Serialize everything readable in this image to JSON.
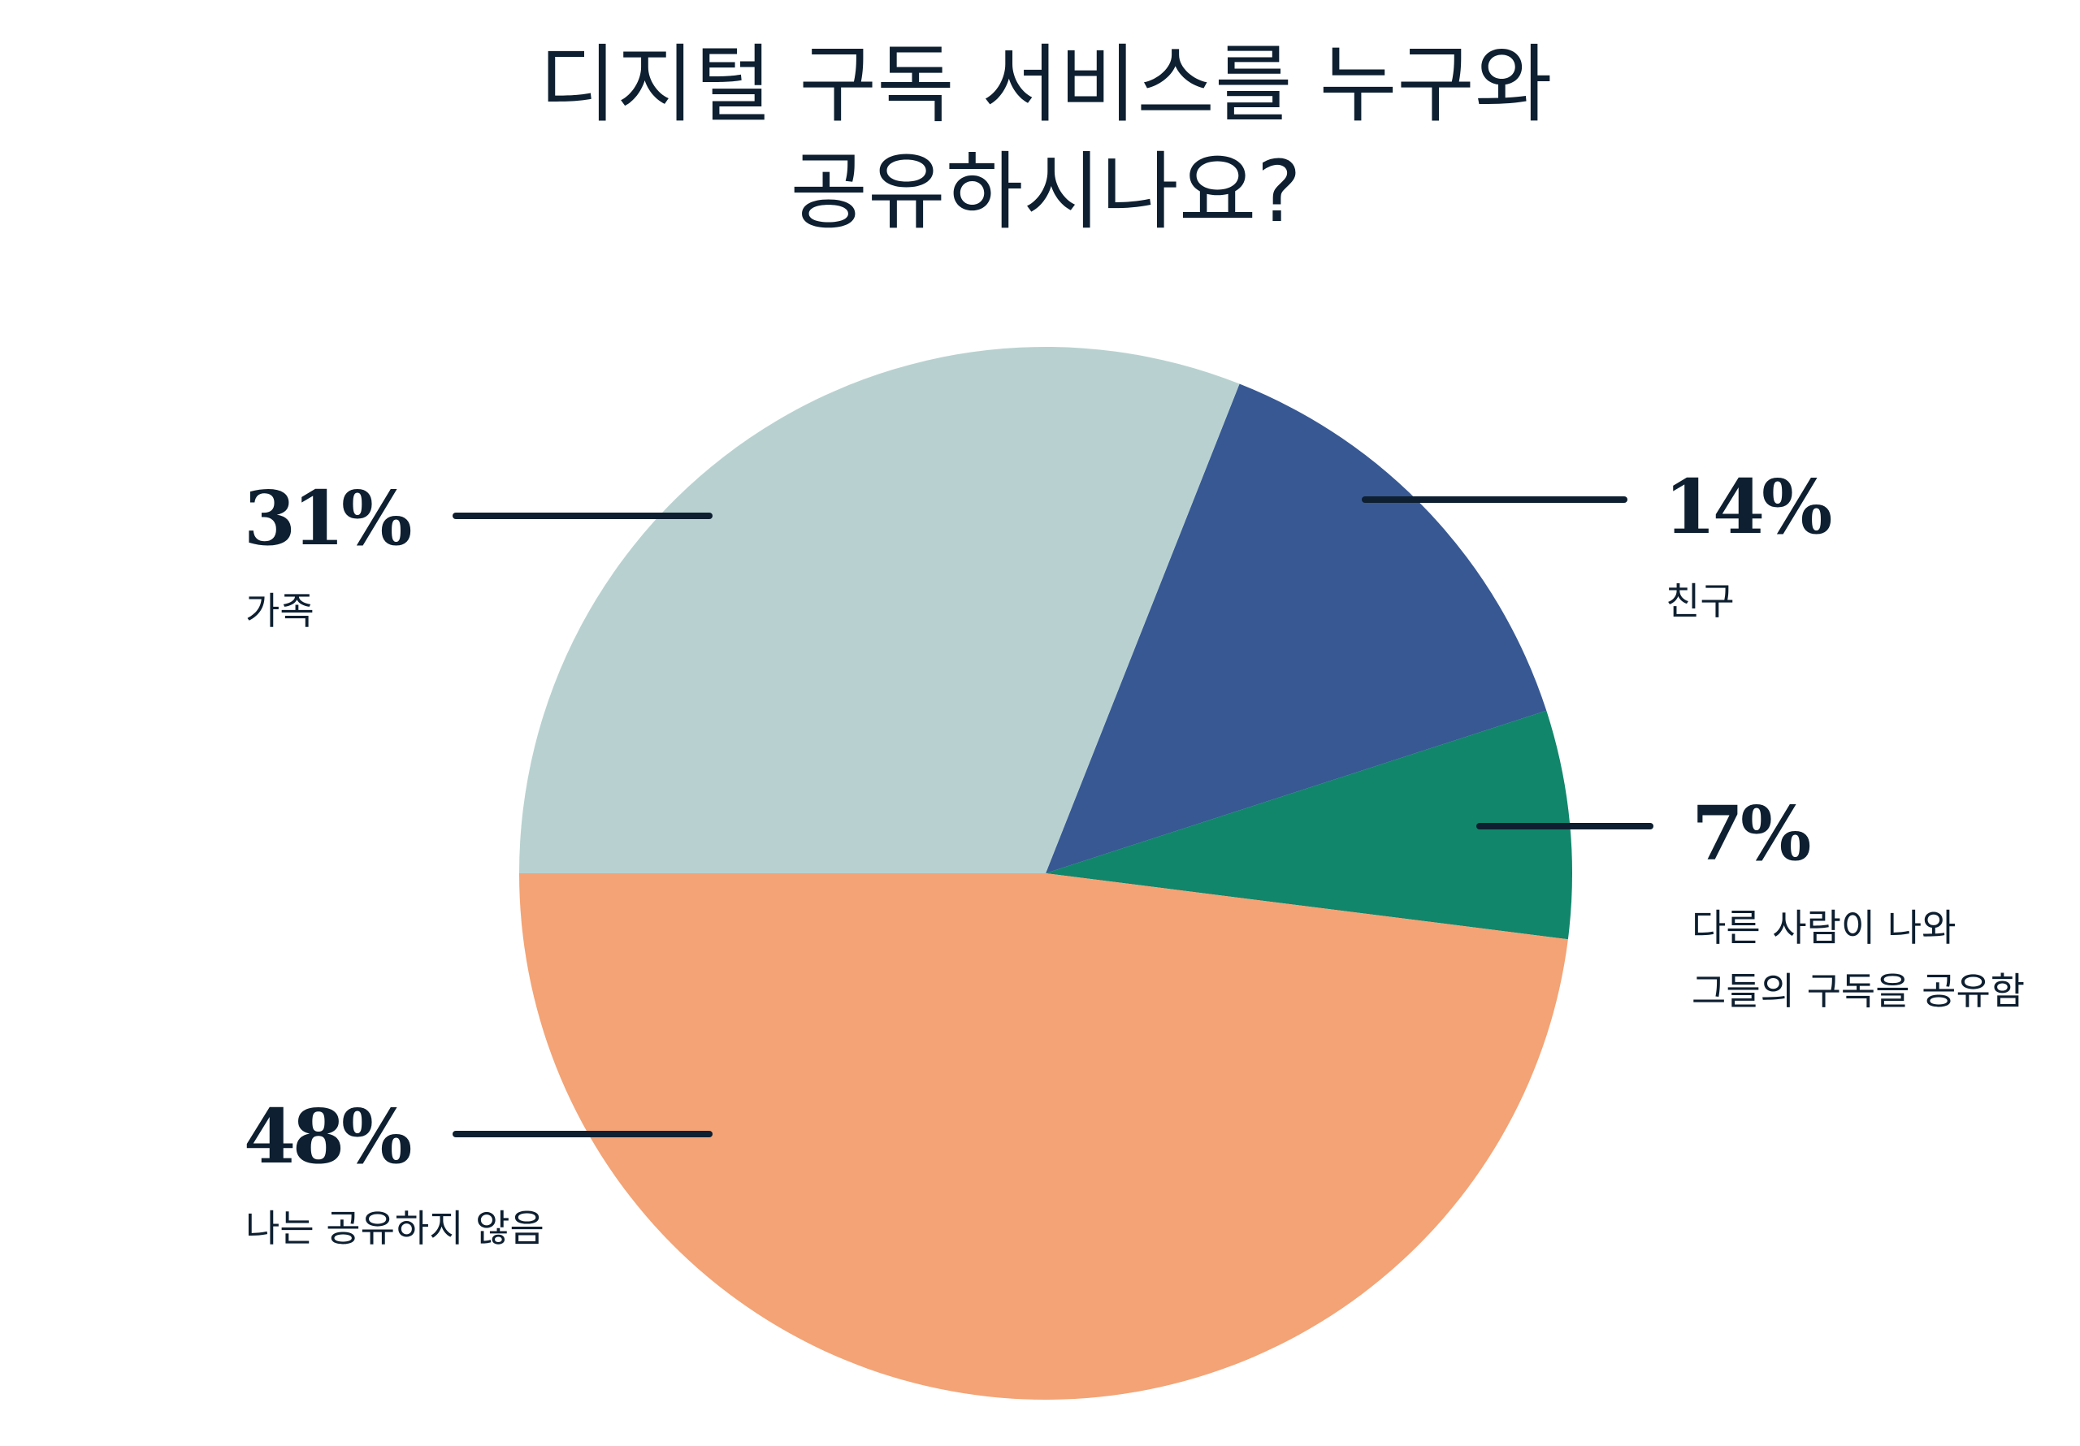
{
  "chart_data": {
    "type": "pie",
    "title_lines": [
      "디지털 구독 서비스를 누구와",
      "공유하시나요?"
    ],
    "start_angle_deg": 21.6,
    "direction": "clockwise",
    "slices": [
      {
        "label": "친구",
        "value": 14,
        "value_label": "14%",
        "color": "#375893",
        "sub_lines": [
          "친구"
        ]
      },
      {
        "label": "다른 사람이 나와 그들의 구독을 공유함",
        "value": 7,
        "value_label": "7%",
        "color": "#11866b",
        "sub_lines": [
          "다른 사람이 나와",
          "그들의 구독을 공유함"
        ]
      },
      {
        "label": "나는 공유하지 않음",
        "value": 48,
        "value_label": "48%",
        "color": "#f3a375",
        "sub_lines": [
          "나는 공유하지 않음"
        ]
      },
      {
        "label": "가족",
        "value": 31,
        "value_label": "31%",
        "color": "#b8d1d0",
        "sub_lines": [
          "가족"
        ]
      }
    ],
    "text_color": "#0d1f30"
  }
}
